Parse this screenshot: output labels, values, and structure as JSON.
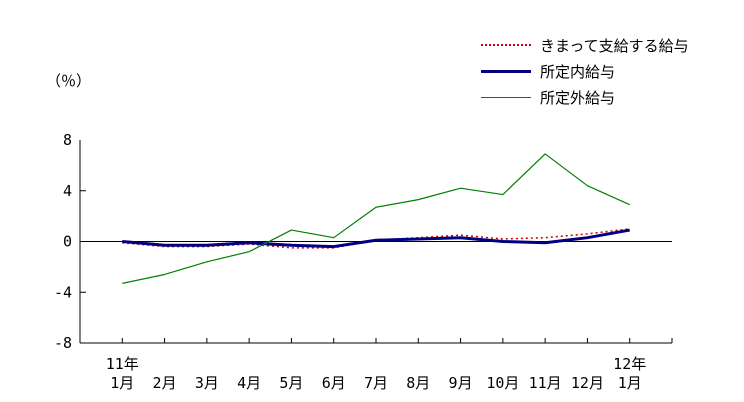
{
  "figure": {
    "background": "#ffffff",
    "axis_color": "#000000"
  },
  "chart_data": {
    "type": "line",
    "title": "",
    "ylabel": "（％）",
    "ylim": [
      -8,
      8
    ],
    "yticks": [
      8,
      4,
      0,
      -4,
      -8
    ],
    "grid": "off",
    "legend_position": "top-right",
    "categories": [
      "1月",
      "2月",
      "3月",
      "4月",
      "5月",
      "6月",
      "7月",
      "8月",
      "9月",
      "10月",
      "11月",
      "12月",
      "1月"
    ],
    "x_year_labels": {
      "first": "11年",
      "last": "12年"
    },
    "series": [
      {
        "name": "きまって支給する給与",
        "color": "#cc0000",
        "line": "dotted",
        "width": 1.5,
        "values": [
          -0.1,
          -0.4,
          -0.4,
          -0.2,
          -0.5,
          -0.5,
          0.1,
          0.3,
          0.5,
          0.2,
          0.3,
          0.6,
          1.0
        ]
      },
      {
        "name": "所定内給与",
        "color": "#000080",
        "line": "solid",
        "width": 3,
        "values": [
          0.0,
          -0.3,
          -0.3,
          -0.1,
          -0.3,
          -0.4,
          0.1,
          0.2,
          0.3,
          0.0,
          -0.1,
          0.3,
          0.9
        ]
      },
      {
        "name": "所定外給与",
        "color": "#008000",
        "line": "solid",
        "width": 1.2,
        "values": [
          -3.3,
          -2.6,
          -1.6,
          -0.8,
          0.9,
          0.3,
          2.7,
          3.3,
          4.2,
          3.7,
          6.9,
          4.4,
          2.9
        ]
      }
    ]
  }
}
